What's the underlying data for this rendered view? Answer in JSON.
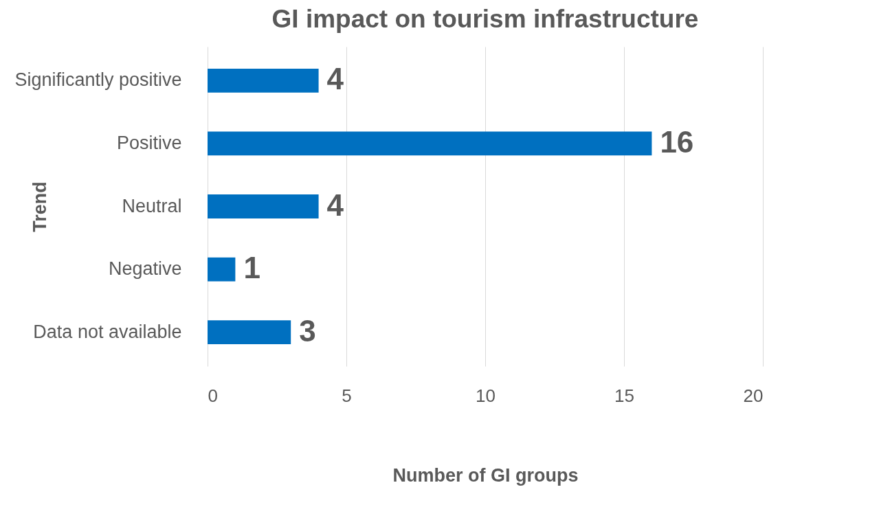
{
  "chart_data": {
    "type": "bar",
    "orientation": "horizontal",
    "title": "GI impact on tourism infrastructure",
    "xlabel": "Number of GI groups",
    "ylabel": "Trend",
    "categories": [
      "Significantly positive",
      "Positive",
      "Neutral",
      "Negative",
      "Data not available"
    ],
    "values": [
      4,
      16,
      4,
      1,
      3
    ],
    "color": "#0070c0",
    "xlim": [
      0,
      20
    ],
    "xticks": [
      0,
      5,
      10,
      15,
      20
    ],
    "grid": "x",
    "data_labels": true
  }
}
